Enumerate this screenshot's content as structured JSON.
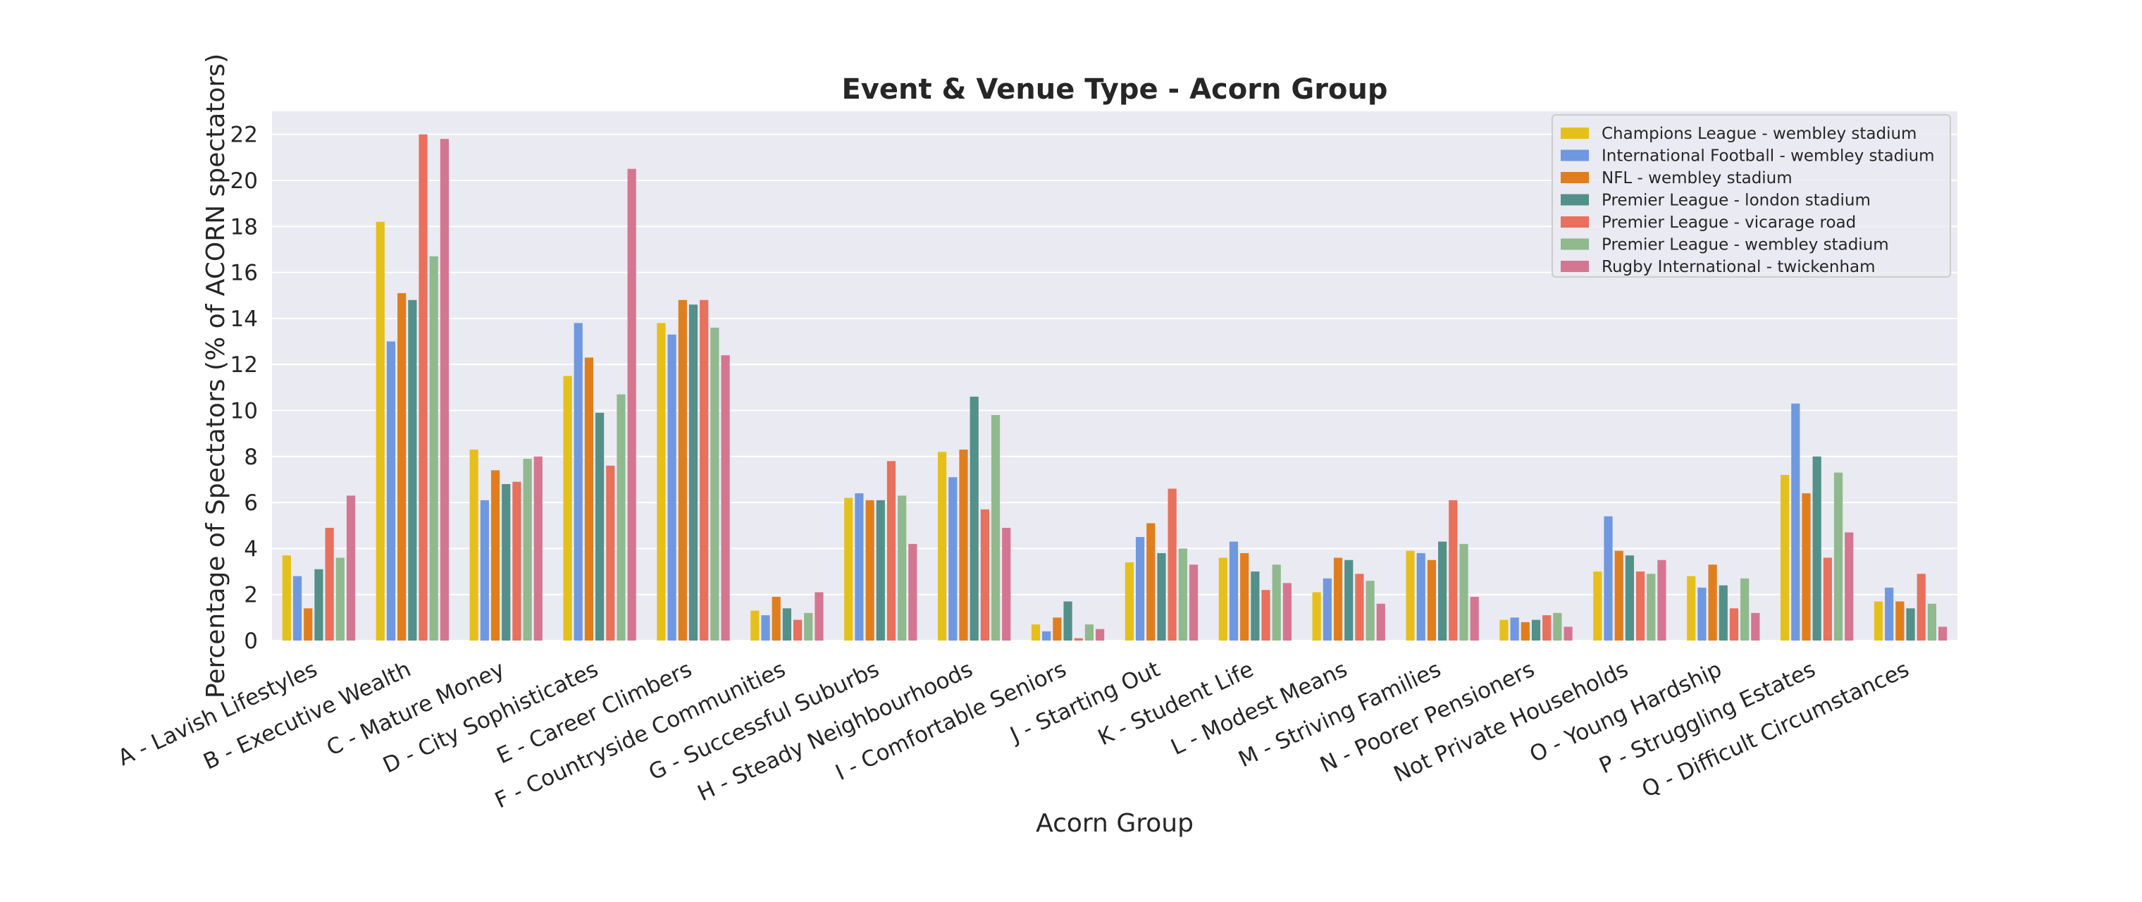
{
  "colors": {
    "plot_background": "#eaeaf2",
    "grid": "#ffffff",
    "text": "#262626",
    "legend_background": "#eaeaf2",
    "legend_border": "#cccccc"
  },
  "chart_data": {
    "type": "bar",
    "title": "Event & Venue Type - Acorn Group",
    "xlabel": "Acorn Group",
    "ylabel": "Percentage of Spectators (% of ACORN spectators)",
    "ylim": [
      0,
      23
    ],
    "yticks": [
      0,
      2,
      4,
      6,
      8,
      10,
      12,
      14,
      16,
      18,
      20,
      22
    ],
    "grid": true,
    "legend_position": "top-right",
    "categories": [
      "A - Lavish Lifestyles",
      "B - Executive Wealth",
      "C - Mature Money",
      "D - City Sophisticates",
      "E - Career Climbers",
      "F - Countryside Communities",
      "G - Successful Suburbs",
      "H - Steady Neighbourhoods",
      "I - Comfortable Seniors",
      "J - Starting Out",
      "K - Student Life",
      "L - Modest Means",
      "M - Striving Families",
      "N - Poorer Pensioners",
      "Not Private Households",
      "O - Young Hardship",
      "P - Struggling Estates",
      "Q - Difficult Circumstances"
    ],
    "series": [
      {
        "name": "Champions League - wembley stadium",
        "color": "#e6c01a",
        "values": [
          3.7,
          18.2,
          8.3,
          11.5,
          13.8,
          1.3,
          6.2,
          8.2,
          0.7,
          3.4,
          3.6,
          2.1,
          3.9,
          0.9,
          3.0,
          2.8,
          7.2,
          1.7
        ]
      },
      {
        "name": "International Football - wembley stadium",
        "color": "#6f98e0",
        "values": [
          2.8,
          13.0,
          6.1,
          13.8,
          13.3,
          1.1,
          6.4,
          7.1,
          0.4,
          4.5,
          4.3,
          2.7,
          3.8,
          1.0,
          5.4,
          2.3,
          10.3,
          2.3
        ]
      },
      {
        "name": "NFL - wembley stadium",
        "color": "#e07e1d",
        "values": [
          1.4,
          15.1,
          7.4,
          12.3,
          14.8,
          1.9,
          6.1,
          8.3,
          1.0,
          5.1,
          3.8,
          3.6,
          3.5,
          0.8,
          3.9,
          3.3,
          6.4,
          1.7
        ]
      },
      {
        "name": "Premier League - london stadium",
        "color": "#539089",
        "values": [
          3.1,
          14.8,
          6.8,
          9.9,
          14.6,
          1.4,
          6.1,
          10.6,
          1.7,
          3.8,
          3.0,
          3.5,
          4.3,
          0.9,
          3.7,
          2.4,
          8.0,
          1.4
        ]
      },
      {
        "name": "Premier League - vicarage road",
        "color": "#e8705c",
        "values": [
          4.9,
          22.0,
          6.9,
          7.6,
          14.8,
          0.9,
          7.8,
          5.7,
          0.1,
          6.6,
          2.2,
          2.9,
          6.1,
          1.1,
          3.0,
          1.4,
          3.6,
          2.9
        ]
      },
      {
        "name": "Premier League - wembley stadium",
        "color": "#90b98d",
        "values": [
          3.6,
          16.7,
          7.9,
          10.7,
          13.6,
          1.2,
          6.3,
          9.8,
          0.7,
          4.0,
          3.3,
          2.6,
          4.2,
          1.2,
          2.9,
          2.7,
          7.3,
          1.6
        ]
      },
      {
        "name": "Rugby International - twickenham",
        "color": "#d57690",
        "values": [
          6.3,
          21.8,
          8.0,
          20.5,
          12.4,
          2.1,
          4.2,
          4.9,
          0.5,
          3.3,
          2.5,
          1.6,
          1.9,
          0.6,
          3.5,
          1.2,
          4.7,
          0.6
        ]
      }
    ]
  }
}
